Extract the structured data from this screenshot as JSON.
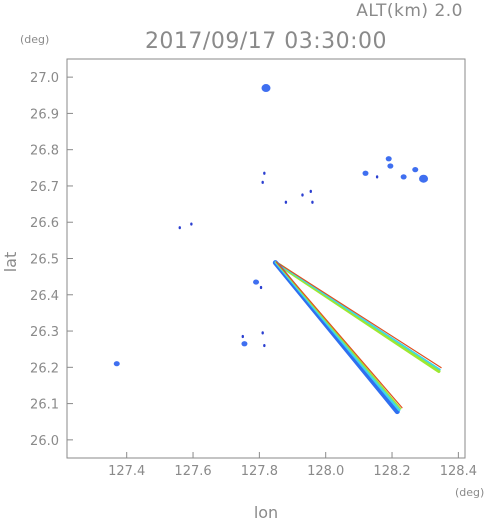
{
  "header": {
    "altitude_label": "ALT(km)  2.0",
    "timestamp": "2017/09/17  03:30:00"
  },
  "chart_data": {
    "type": "scatter",
    "title": "2017/09/17  03:30:00",
    "xlabel": "lon",
    "ylabel": "lat",
    "x_unit": "(deg)",
    "y_unit": "(deg)",
    "xlim": [
      127.22,
      128.42
    ],
    "ylim": [
      25.95,
      27.05
    ],
    "xticks": [
      "127.4",
      "127.6",
      "127.8",
      "128.0",
      "128.2",
      "128.4"
    ],
    "yticks": [
      "26.0",
      "26.1",
      "26.2",
      "26.3",
      "26.4",
      "26.5",
      "26.6",
      "26.7",
      "26.8",
      "26.9",
      "27.0"
    ],
    "grid": false,
    "colors": {
      "echo": "#3f6ff0",
      "echo_dark": "#2b3fd0",
      "ray_low": "#2f6ff0",
      "ray_mid": "#3fd6e8",
      "ray_high": "#9ee830",
      "ray_edge": "#e05020",
      "axis": "#8a8a8a"
    },
    "echo_cells": [
      {
        "lon": 127.82,
        "lat": 26.97,
        "size": 3
      },
      {
        "lon": 127.815,
        "lat": 26.735,
        "size": 1
      },
      {
        "lon": 127.81,
        "lat": 26.71,
        "size": 1
      },
      {
        "lon": 127.88,
        "lat": 26.655,
        "size": 1
      },
      {
        "lon": 127.93,
        "lat": 26.675,
        "size": 1
      },
      {
        "lon": 127.955,
        "lat": 26.685,
        "size": 1
      },
      {
        "lon": 127.96,
        "lat": 26.655,
        "size": 1
      },
      {
        "lon": 127.56,
        "lat": 26.585,
        "size": 1
      },
      {
        "lon": 127.595,
        "lat": 26.595,
        "size": 1
      },
      {
        "lon": 128.12,
        "lat": 26.735,
        "size": 2
      },
      {
        "lon": 128.155,
        "lat": 26.725,
        "size": 1
      },
      {
        "lon": 128.19,
        "lat": 26.775,
        "size": 2
      },
      {
        "lon": 128.195,
        "lat": 26.755,
        "size": 2
      },
      {
        "lon": 128.235,
        "lat": 26.725,
        "size": 2
      },
      {
        "lon": 128.27,
        "lat": 26.745,
        "size": 2
      },
      {
        "lon": 128.295,
        "lat": 26.72,
        "size": 3
      },
      {
        "lon": 127.79,
        "lat": 26.435,
        "size": 2
      },
      {
        "lon": 127.805,
        "lat": 26.42,
        "size": 1
      },
      {
        "lon": 127.755,
        "lat": 26.265,
        "size": 2
      },
      {
        "lon": 127.75,
        "lat": 26.285,
        "size": 1
      },
      {
        "lon": 127.81,
        "lat": 26.295,
        "size": 1
      },
      {
        "lon": 127.815,
        "lat": 26.26,
        "size": 1
      },
      {
        "lon": 127.37,
        "lat": 26.21,
        "size": 2
      }
    ],
    "rays": [
      {
        "name": "upper",
        "start": [
          127.85,
          26.49
        ],
        "end": [
          128.345,
          26.195
        ]
      },
      {
        "name": "lower",
        "start": [
          127.85,
          26.49
        ],
        "end": [
          128.225,
          26.085
        ]
      }
    ]
  }
}
